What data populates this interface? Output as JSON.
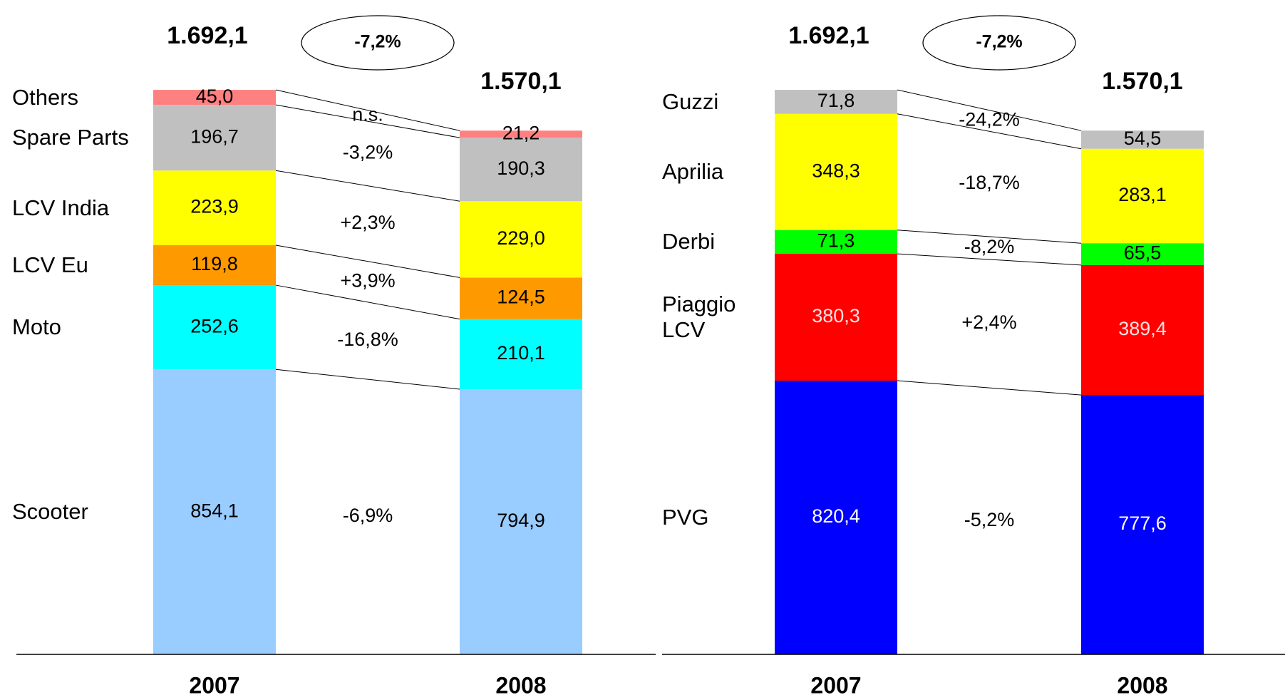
{
  "chart_data": [
    {
      "type": "stacked_bar",
      "categories": [
        "2007",
        "2008"
      ],
      "totals": [
        1692.1,
        1570.1
      ],
      "total_labels": [
        "1.692,1",
        "1.570,1"
      ],
      "change_total": "-7,2%",
      "series": [
        {
          "name": "Scooter",
          "color": "#99ccff",
          "label_color": "#000000",
          "values": [
            854.1,
            794.9
          ],
          "value_labels": [
            "854,1",
            "794,9"
          ],
          "change": "-6,9%"
        },
        {
          "name": "Moto",
          "color": "#00ffff",
          "label_color": "#000000",
          "values": [
            252.6,
            210.1
          ],
          "value_labels": [
            "252,6",
            "210,1"
          ],
          "change": "-16,8%"
        },
        {
          "name": "LCV Eu",
          "color": "#ff9900",
          "label_color": "#000000",
          "values": [
            119.8,
            124.5
          ],
          "value_labels": [
            "119,8",
            "124,5"
          ],
          "change": "+3,9%"
        },
        {
          "name": "LCV India",
          "color": "#ffff00",
          "label_color": "#000000",
          "values": [
            223.9,
            229.0
          ],
          "value_labels": [
            "223,9",
            "229,0"
          ],
          "change": "+2,3%"
        },
        {
          "name": "Spare Parts",
          "color": "#c0c0c0",
          "label_color": "#000000",
          "values": [
            196.7,
            190.3
          ],
          "value_labels": [
            "196,7",
            "190,3"
          ],
          "change": "-3,2%"
        },
        {
          "name": "Others",
          "color": "#ff8080",
          "label_color": "#000000",
          "values": [
            45.0,
            21.2
          ],
          "value_labels": [
            "45,0",
            "21,2"
          ],
          "change": "n.s."
        }
      ]
    },
    {
      "type": "stacked_bar",
      "categories": [
        "2007",
        "2008"
      ],
      "totals": [
        1692.1,
        1570.1
      ],
      "total_labels": [
        "1.692,1",
        "1.570,1"
      ],
      "change_total": "-7,2%",
      "series": [
        {
          "name": "PVG",
          "color": "#0000ff",
          "label_color": "#ffffff",
          "values": [
            820.4,
            777.6
          ],
          "value_labels": [
            "820,4",
            "777,6"
          ],
          "change": "-5,2%"
        },
        {
          "name": "Piaggio LCV",
          "color": "#ff0000",
          "label_color": "#ffe0e0",
          "values": [
            380.3,
            389.4
          ],
          "value_labels": [
            "380,3",
            "389,4"
          ],
          "change": "+2,4%"
        },
        {
          "name": "Derbi",
          "color": "#00ff00",
          "label_color": "#000000",
          "values": [
            71.3,
            65.5
          ],
          "value_labels": [
            "71,3",
            "65,5"
          ],
          "change": "-8,2%"
        },
        {
          "name": "Aprilia",
          "color": "#ffff00",
          "label_color": "#000000",
          "values": [
            348.3,
            283.1
          ],
          "value_labels": [
            "348,3",
            "283,1"
          ],
          "change": "-18,7%"
        },
        {
          "name": "Guzzi",
          "color": "#c0c0c0",
          "label_color": "#000000",
          "values": [
            71.8,
            54.5
          ],
          "value_labels": [
            "71,8",
            "54,5"
          ],
          "change": "-24,2%"
        }
      ]
    }
  ]
}
